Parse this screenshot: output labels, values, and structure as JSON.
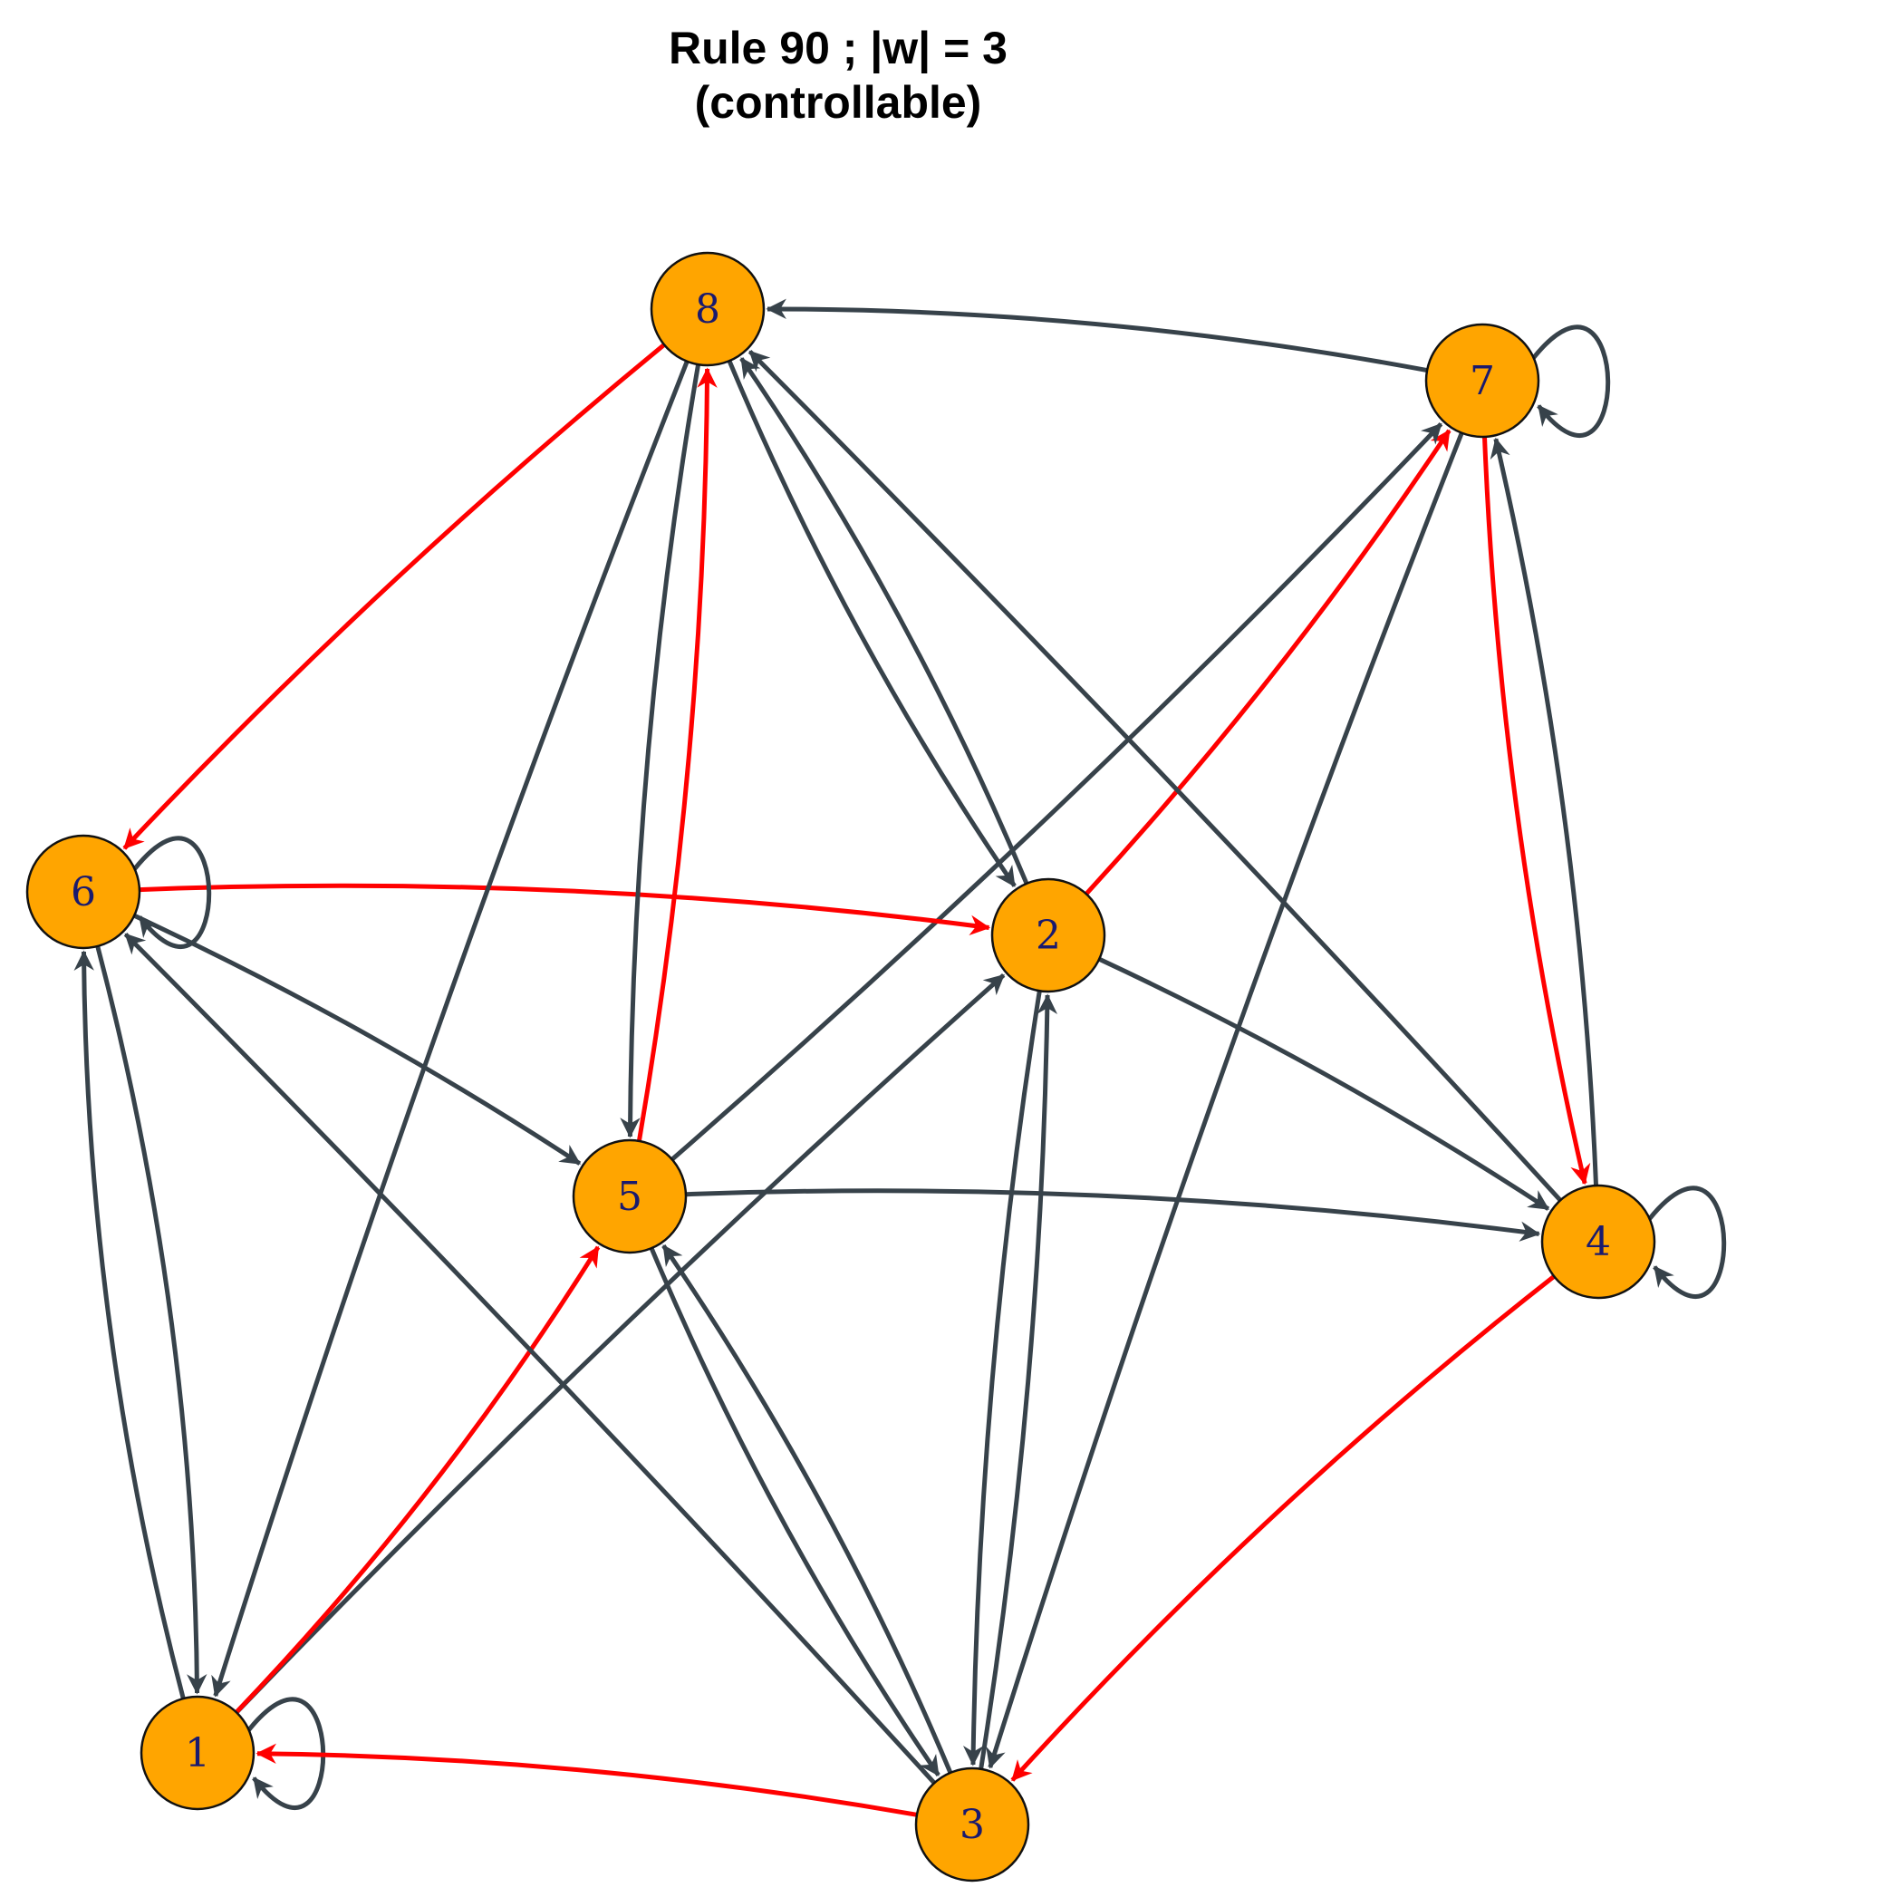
{
  "title": {
    "line1": "Rule 90 ; |w| = 3",
    "line2": "(controllable)"
  },
  "colors": {
    "edge": "#37424a",
    "highlight": "#ff0000",
    "node_fill": "#ffa500",
    "node_stroke": "#111111",
    "node_label": "#1a1a6e"
  },
  "nodes": [
    {
      "id": "1",
      "label": "1"
    },
    {
      "id": "2",
      "label": "2"
    },
    {
      "id": "3",
      "label": "3"
    },
    {
      "id": "4",
      "label": "4"
    },
    {
      "id": "5",
      "label": "5"
    },
    {
      "id": "6",
      "label": "6"
    },
    {
      "id": "7",
      "label": "7"
    },
    {
      "id": "8",
      "label": "8"
    }
  ],
  "edges": [
    {
      "from": "1",
      "to": "1",
      "highlighted": false
    },
    {
      "from": "1",
      "to": "2",
      "highlighted": false
    },
    {
      "from": "1",
      "to": "5",
      "highlighted": true
    },
    {
      "from": "1",
      "to": "6",
      "highlighted": false
    },
    {
      "from": "2",
      "to": "3",
      "highlighted": false
    },
    {
      "from": "2",
      "to": "4",
      "highlighted": false
    },
    {
      "from": "2",
      "to": "7",
      "highlighted": true
    },
    {
      "from": "2",
      "to": "8",
      "highlighted": false
    },
    {
      "from": "3",
      "to": "1",
      "highlighted": true
    },
    {
      "from": "3",
      "to": "2",
      "highlighted": false
    },
    {
      "from": "3",
      "to": "5",
      "highlighted": false
    },
    {
      "from": "3",
      "to": "6",
      "highlighted": false
    },
    {
      "from": "4",
      "to": "3",
      "highlighted": true
    },
    {
      "from": "4",
      "to": "4",
      "highlighted": false
    },
    {
      "from": "4",
      "to": "7",
      "highlighted": false
    },
    {
      "from": "4",
      "to": "8",
      "highlighted": false
    },
    {
      "from": "5",
      "to": "3",
      "highlighted": false
    },
    {
      "from": "5",
      "to": "4",
      "highlighted": false
    },
    {
      "from": "5",
      "to": "7",
      "highlighted": false
    },
    {
      "from": "5",
      "to": "8",
      "highlighted": true
    },
    {
      "from": "6",
      "to": "1",
      "highlighted": false
    },
    {
      "from": "6",
      "to": "2",
      "highlighted": true
    },
    {
      "from": "6",
      "to": "5",
      "highlighted": false
    },
    {
      "from": "6",
      "to": "6",
      "highlighted": false
    },
    {
      "from": "7",
      "to": "3",
      "highlighted": false
    },
    {
      "from": "7",
      "to": "4",
      "highlighted": true
    },
    {
      "from": "7",
      "to": "7",
      "highlighted": false
    },
    {
      "from": "7",
      "to": "8",
      "highlighted": false
    },
    {
      "from": "8",
      "to": "1",
      "highlighted": false
    },
    {
      "from": "8",
      "to": "2",
      "highlighted": false
    },
    {
      "from": "8",
      "to": "5",
      "highlighted": false
    },
    {
      "from": "8",
      "to": "6",
      "highlighted": true
    }
  ]
}
